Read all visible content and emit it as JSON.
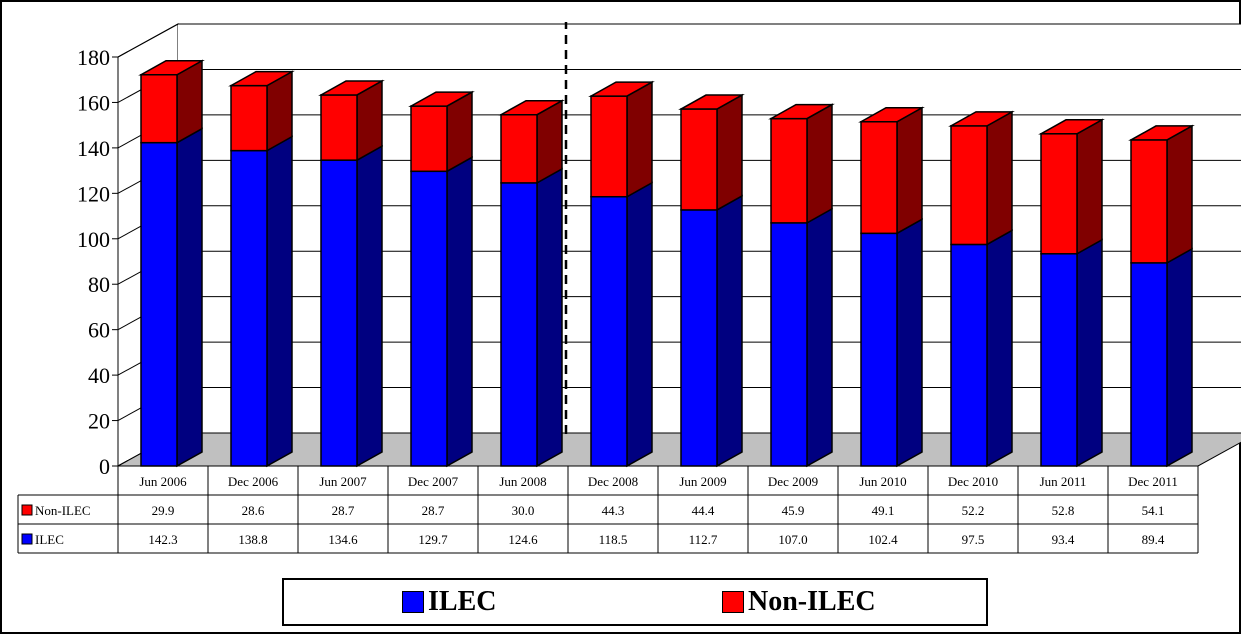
{
  "chart_data": {
    "type": "bar",
    "stacked": true,
    "three_d": true,
    "categories": [
      "Jun 2006",
      "Dec 2006",
      "Jun 2007",
      "Dec 2007",
      "Jun 2008",
      "Dec 2008",
      "Jun 2009",
      "Dec 2009",
      "Jun 2010",
      "Dec 2010",
      "Jun 2011",
      "Dec 2011"
    ],
    "series": [
      {
        "name": "ILEC",
        "color": "#0000ff",
        "side_color": "#000080",
        "values": [
          142.3,
          138.8,
          134.6,
          129.7,
          124.6,
          118.5,
          112.7,
          107.0,
          102.4,
          97.5,
          93.4,
          89.4
        ],
        "labels": [
          "142.3",
          "138.8",
          "134.6",
          "129.7",
          "124.6",
          "118.5",
          "112.7",
          "107.0",
          "102.4",
          "97.5",
          "93.4",
          "89.4"
        ]
      },
      {
        "name": "Non-ILEC",
        "color": "#ff0000",
        "side_color": "#800000",
        "values": [
          29.9,
          28.6,
          28.7,
          28.7,
          30.0,
          44.3,
          44.4,
          45.9,
          49.1,
          52.2,
          52.8,
          54.1
        ],
        "labels": [
          "29.9",
          "28.6",
          "28.7",
          "28.7",
          "30.0",
          "44.3",
          "44.4",
          "45.9",
          "49.1",
          "52.2",
          "52.8",
          "54.1"
        ]
      }
    ],
    "ylim": [
      0,
      180
    ],
    "yticks": [
      "0",
      "20",
      "40",
      "60",
      "80",
      "100",
      "120",
      "140",
      "160",
      "180"
    ],
    "grid": true,
    "data_table": true,
    "divider_after": "Jun 2008",
    "legend_position": "bottom",
    "legend": [
      "ILEC",
      "Non-ILEC"
    ]
  }
}
